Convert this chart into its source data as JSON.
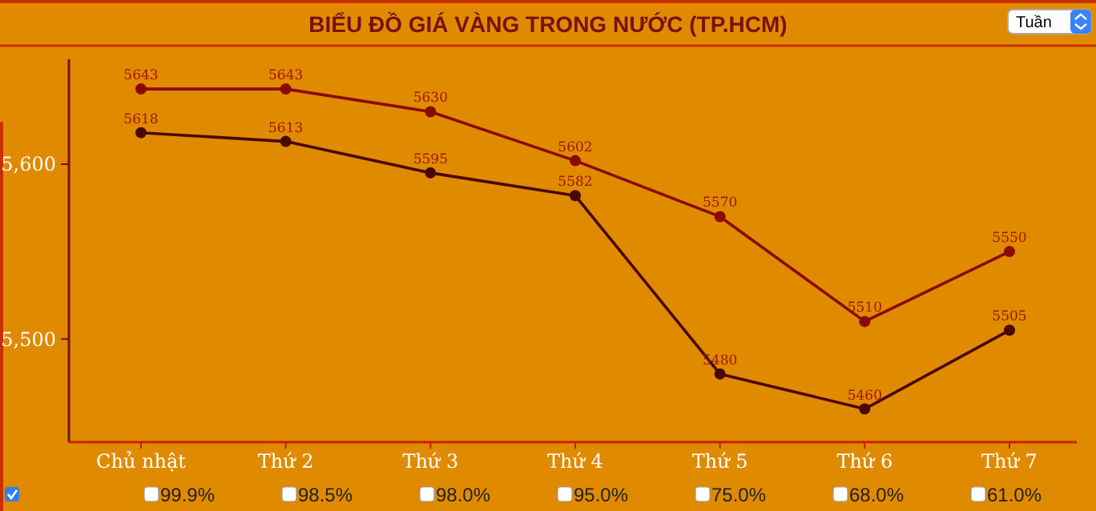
{
  "chart_data": {
    "type": "line",
    "title": "BIỂU ĐỒ GIÁ VÀNG TRONG NƯỚC (TP.HCM)",
    "categories": [
      "Chủ nhật",
      "Thứ 2",
      "Thứ 3",
      "Thứ 4",
      "Thứ 5",
      "Thứ 6",
      "Thứ 7"
    ],
    "series": [
      {
        "color": "#8b0a00",
        "values": [
          5643,
          5643,
          5630,
          5602,
          5570,
          5510,
          5550
        ]
      },
      {
        "color": "#4a0800",
        "values": [
          5618,
          5613,
          5595,
          5582,
          5480,
          5460,
          5505
        ]
      }
    ],
    "ylim": [
      5441,
      5660
    ],
    "yticks": [
      {
        "value": 5500,
        "label": "5,500"
      },
      {
        "value": 5600,
        "label": "5,600"
      }
    ],
    "data_labels": true,
    "marker": "circle",
    "line_style": "solid",
    "annotations": [
      "Tuần",
      "99.9%",
      "98.5%",
      "98.0%",
      "95.0%",
      "75.0%",
      "68.0%",
      "61.0%"
    ]
  }
}
